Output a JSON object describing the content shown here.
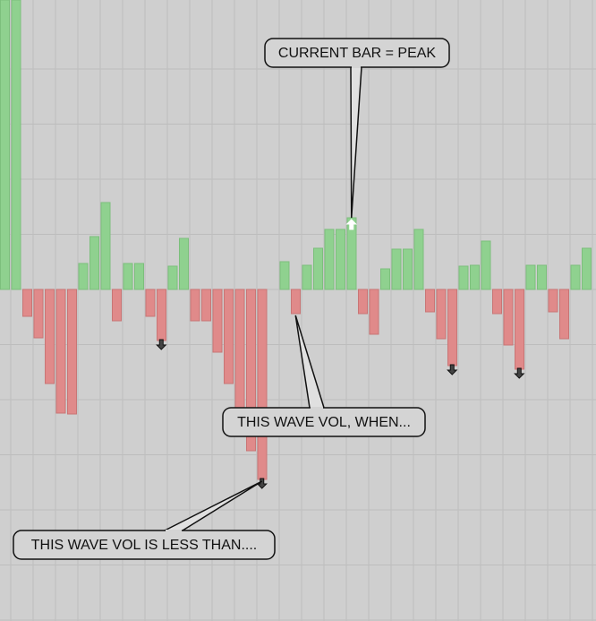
{
  "chart_data": {
    "type": "bar",
    "values": [
      323,
      323,
      -30,
      -54,
      -105,
      -138,
      -139,
      29,
      59,
      97,
      -35,
      29,
      29,
      -30,
      -57,
      26,
      57,
      -35,
      -35,
      -70,
      -105,
      -139,
      -180,
      -212,
      0,
      31,
      -27,
      27,
      46,
      67,
      67,
      80,
      -27,
      -50,
      23,
      45,
      45,
      67,
      -25,
      -55,
      -85,
      26,
      27,
      54,
      -27,
      -62,
      -89,
      27,
      27,
      -25,
      -55,
      27,
      46
    ],
    "ylim": [
      -370,
      323
    ],
    "up_color": "#8fd18f",
    "down_color": "#e08a8a",
    "marked_bars": [
      14,
      23,
      31,
      40,
      46
    ],
    "annotations": [
      {
        "text": "CURRENT BAR = PEAK",
        "bar": 31
      },
      {
        "text": "THIS WAVE VOL, WHEN...",
        "bar": 26
      },
      {
        "text": "THIS WAVE VOL IS LESS THAN....",
        "bar": 23
      }
    ]
  }
}
